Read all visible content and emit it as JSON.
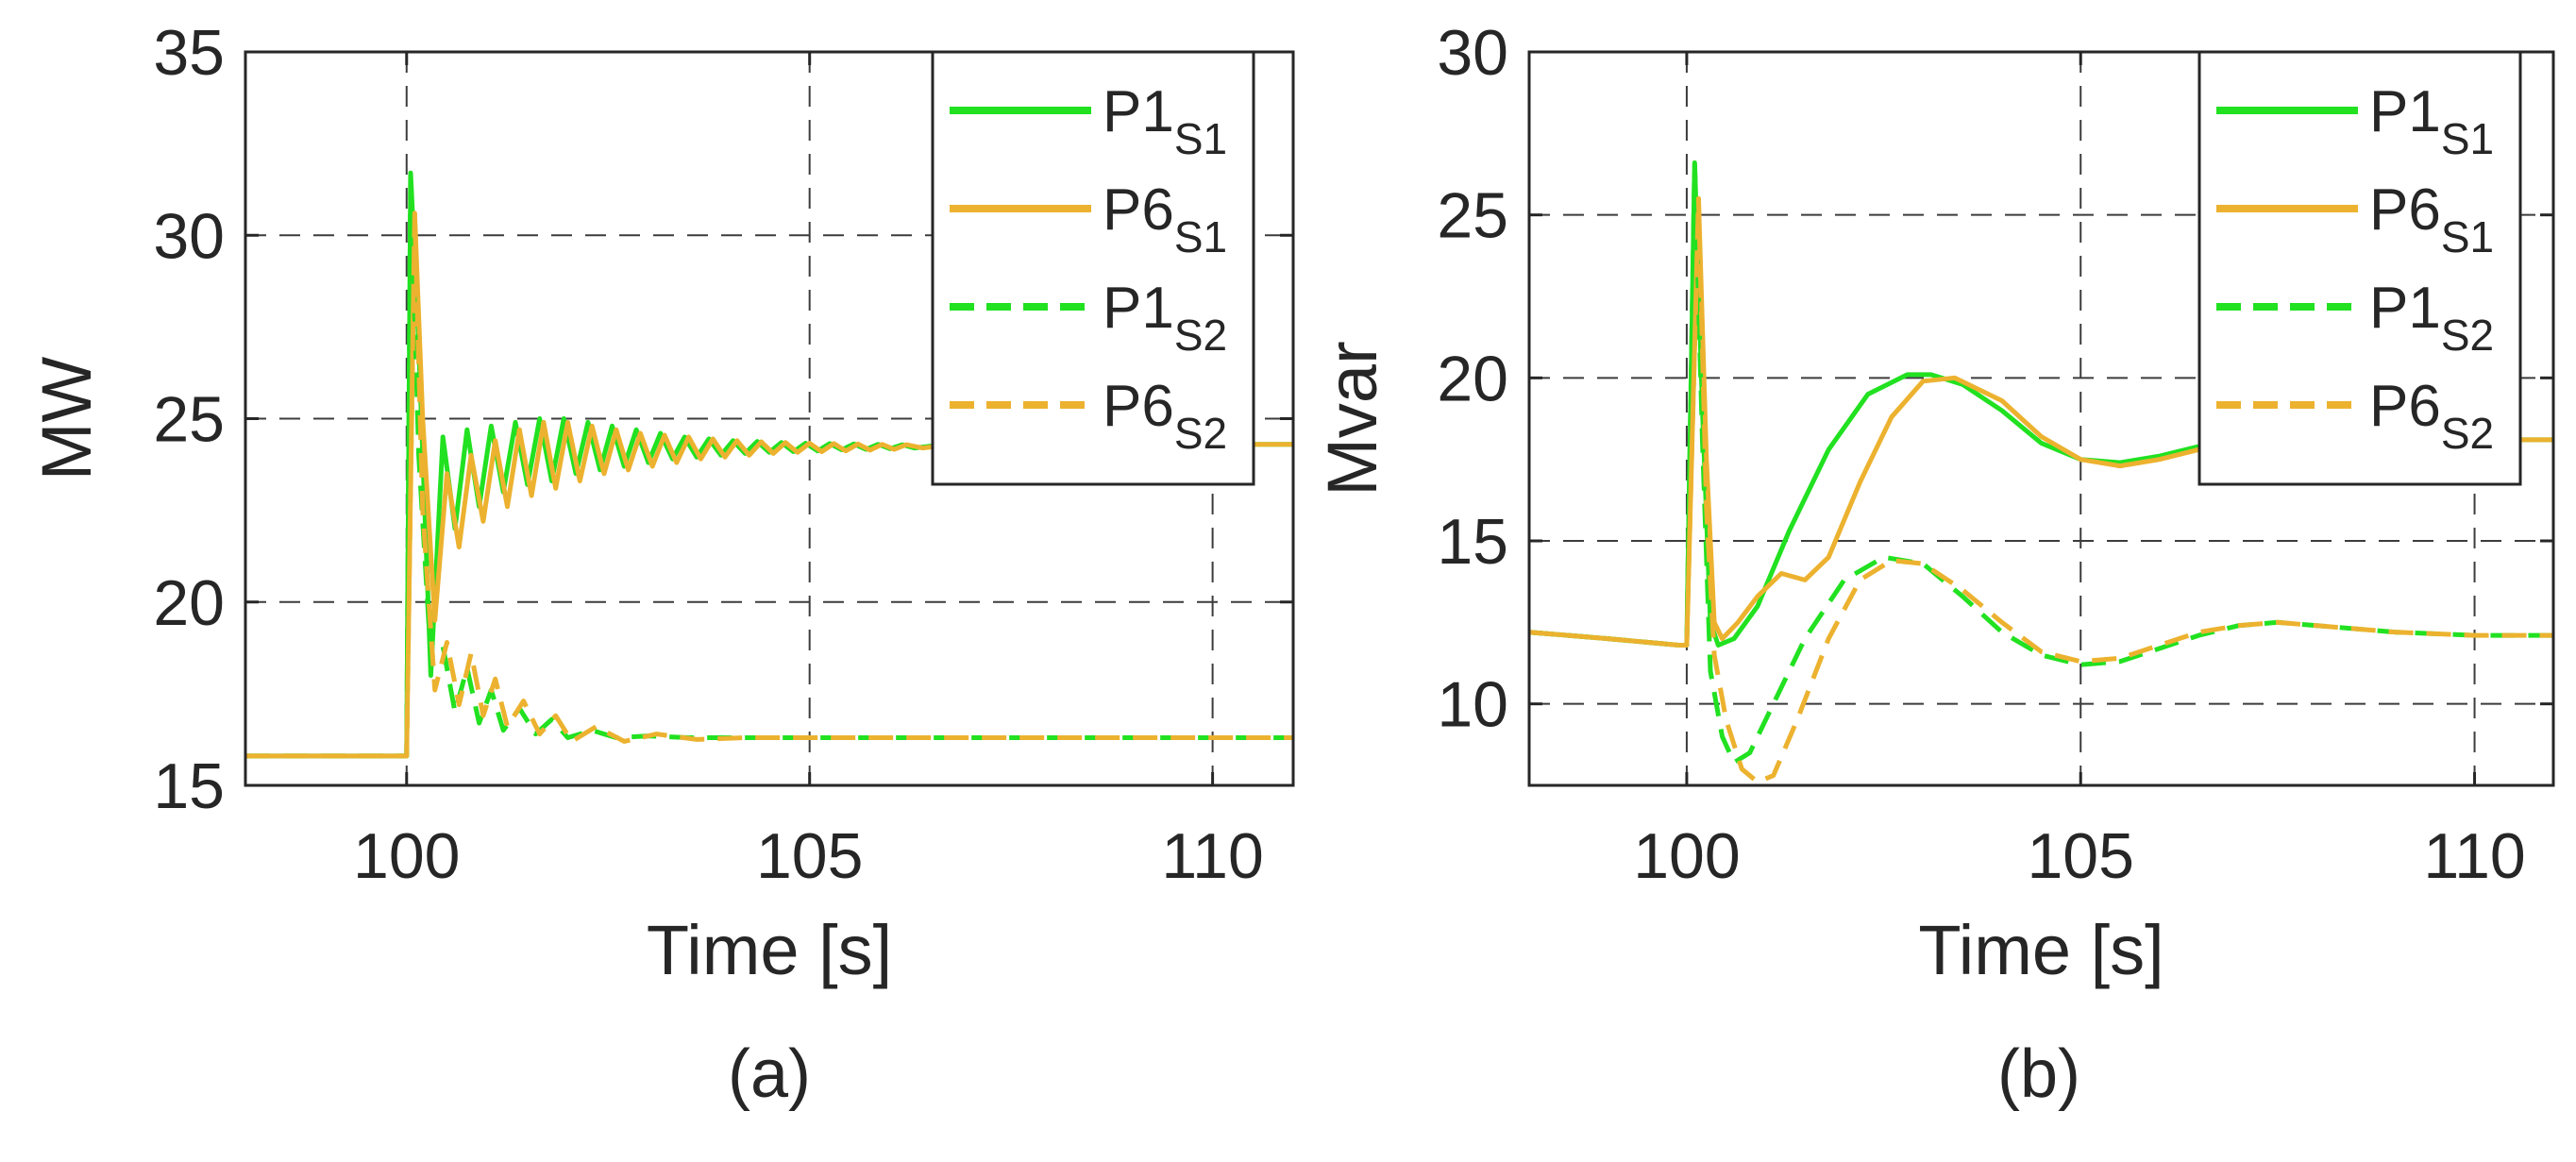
{
  "colors": {
    "green": "#21e121",
    "orange": "#ecb22f",
    "grid": "#3c3c3c",
    "text": "#262626"
  },
  "chart_data": [
    {
      "type": "line",
      "caption": "(a)",
      "xlabel": "Time [s]",
      "ylabel": "MW",
      "xlim": [
        98,
        111
      ],
      "ylim": [
        15,
        35
      ],
      "xticks": [
        100,
        105,
        110
      ],
      "yticks": [
        15,
        20,
        25,
        30,
        35
      ],
      "grid": true,
      "legend_position": "top-right",
      "series": [
        {
          "name": "P1",
          "sub": "S1",
          "color": "#21e121",
          "style": "solid",
          "x": [
            98,
            99,
            100,
            100.05,
            100.15,
            100.3,
            100.45,
            100.6,
            100.75,
            100.9,
            101.05,
            101.2,
            101.35,
            101.5,
            101.65,
            101.8,
            101.95,
            102.1,
            102.25,
            102.4,
            102.55,
            102.7,
            102.85,
            103,
            103.15,
            103.3,
            103.45,
            103.6,
            103.75,
            103.9,
            104.05,
            104.2,
            104.35,
            104.5,
            104.65,
            104.8,
            104.95,
            105.1,
            105.25,
            105.4,
            105.55,
            105.7,
            105.85,
            106,
            106.15,
            106.3,
            106.5,
            107,
            108,
            109,
            110,
            111
          ],
          "y": [
            15.8,
            15.8,
            15.8,
            31.7,
            27.0,
            18.0,
            24.5,
            22.0,
            24.7,
            22.6,
            24.8,
            23.0,
            24.9,
            23.2,
            25.0,
            23.3,
            25.0,
            23.5,
            24.9,
            23.6,
            24.8,
            23.7,
            24.7,
            23.8,
            24.6,
            23.9,
            24.5,
            23.95,
            24.45,
            24.0,
            24.4,
            24.05,
            24.38,
            24.08,
            24.35,
            24.1,
            24.33,
            24.12,
            24.32,
            24.15,
            24.31,
            24.16,
            24.3,
            24.18,
            24.29,
            24.2,
            24.25,
            24.3,
            24.3,
            24.3,
            24.3,
            24.3
          ]
        },
        {
          "name": "P6",
          "sub": "S1",
          "color": "#ecb22f",
          "style": "solid",
          "x": [
            98,
            99,
            100,
            100.1,
            100.2,
            100.35,
            100.5,
            100.65,
            100.8,
            100.95,
            101.1,
            101.25,
            101.4,
            101.55,
            101.7,
            101.85,
            102,
            102.15,
            102.3,
            102.45,
            102.6,
            102.75,
            102.9,
            103.05,
            103.2,
            103.35,
            103.5,
            103.65,
            103.8,
            103.95,
            104.1,
            104.25,
            104.4,
            104.55,
            104.7,
            104.85,
            105,
            105.15,
            105.3,
            105.45,
            105.6,
            105.75,
            105.9,
            106.05,
            106.2,
            106.4,
            106.6,
            107,
            108,
            109,
            110,
            111
          ],
          "y": [
            15.8,
            15.8,
            15.8,
            30.6,
            25.0,
            19.5,
            23.5,
            21.5,
            24.0,
            22.2,
            24.4,
            22.6,
            24.7,
            22.9,
            24.9,
            23.1,
            24.9,
            23.3,
            24.8,
            23.5,
            24.7,
            23.6,
            24.6,
            23.7,
            24.55,
            23.8,
            24.5,
            23.9,
            24.45,
            23.95,
            24.4,
            24.0,
            24.37,
            24.05,
            24.35,
            24.08,
            24.33,
            24.1,
            24.32,
            24.12,
            24.31,
            24.14,
            24.3,
            24.16,
            24.29,
            24.2,
            24.25,
            24.3,
            24.3,
            24.3,
            24.3,
            24.3
          ]
        },
        {
          "name": "P1",
          "sub": "S2",
          "color": "#21e121",
          "style": "dashed",
          "x": [
            98,
            99,
            100,
            100.05,
            100.15,
            100.3,
            100.45,
            100.6,
            100.75,
            100.9,
            101.05,
            101.2,
            101.4,
            101.6,
            101.8,
            102,
            102.3,
            102.6,
            103,
            103.5,
            104,
            105,
            106,
            107,
            108,
            109,
            110,
            111
          ],
          "y": [
            15.8,
            15.8,
            15.8,
            31.7,
            24.0,
            18.5,
            18.8,
            17.0,
            18.2,
            16.7,
            17.6,
            16.5,
            17.1,
            16.4,
            16.8,
            16.3,
            16.5,
            16.3,
            16.35,
            16.3,
            16.3,
            16.3,
            16.3,
            16.3,
            16.3,
            16.3,
            16.3,
            16.3
          ]
        },
        {
          "name": "P6",
          "sub": "S2",
          "color": "#ecb22f",
          "style": "dashed",
          "x": [
            98,
            99,
            100,
            100.1,
            100.2,
            100.35,
            100.5,
            100.65,
            100.8,
            100.95,
            101.1,
            101.25,
            101.45,
            101.65,
            101.85,
            102.05,
            102.35,
            102.7,
            103.1,
            103.6,
            104.2,
            105,
            106,
            107,
            108,
            109,
            110,
            111
          ],
          "y": [
            15.8,
            15.8,
            15.8,
            30.6,
            22.5,
            17.6,
            18.9,
            17.2,
            18.6,
            16.9,
            17.9,
            16.6,
            17.3,
            16.4,
            16.9,
            16.2,
            16.6,
            16.2,
            16.4,
            16.25,
            16.3,
            16.3,
            16.3,
            16.3,
            16.3,
            16.3,
            16.3,
            16.3
          ]
        }
      ]
    },
    {
      "type": "line",
      "caption": "(b)",
      "xlabel": "Time [s]",
      "ylabel": "Mvar",
      "xlim": [
        98,
        111
      ],
      "ylim": [
        7.5,
        30
      ],
      "xticks": [
        100,
        105,
        110
      ],
      "yticks": [
        10,
        15,
        20,
        25,
        30
      ],
      "grid": true,
      "legend_position": "top-right",
      "series": [
        {
          "name": "P1",
          "sub": "S1",
          "color": "#21e121",
          "style": "solid",
          "x": [
            98,
            99,
            99.9,
            100,
            100.1,
            100.2,
            100.3,
            100.4,
            100.6,
            100.9,
            101.3,
            101.8,
            102.3,
            102.8,
            103.1,
            103.5,
            104,
            104.5,
            105,
            105.5,
            106,
            106.5,
            107,
            107.5,
            108,
            109,
            110,
            111
          ],
          "y": [
            12.2,
            12.0,
            11.8,
            11.8,
            26.6,
            19.0,
            12.5,
            11.8,
            12.0,
            13.0,
            15.3,
            17.8,
            19.5,
            20.1,
            20.1,
            19.8,
            19.0,
            18.0,
            17.5,
            17.4,
            17.6,
            17.9,
            18.1,
            18.2,
            18.2,
            18.1,
            18.1,
            18.1
          ]
        },
        {
          "name": "P6",
          "sub": "S1",
          "color": "#ecb22f",
          "style": "solid",
          "x": [
            98,
            99,
            99.9,
            100,
            100.15,
            100.25,
            100.35,
            100.45,
            100.65,
            100.9,
            101.2,
            101.5,
            101.8,
            102.2,
            102.6,
            103,
            103.4,
            104,
            104.5,
            105,
            105.5,
            106,
            106.5,
            107,
            107.5,
            108,
            109,
            110,
            111
          ],
          "y": [
            12.2,
            12.0,
            11.8,
            11.8,
            25.5,
            17.5,
            12.5,
            12.0,
            12.5,
            13.3,
            14.0,
            13.8,
            14.5,
            16.8,
            18.8,
            19.9,
            20.0,
            19.3,
            18.2,
            17.5,
            17.3,
            17.5,
            17.8,
            18.0,
            18.2,
            18.2,
            18.1,
            18.1,
            18.1
          ]
        },
        {
          "name": "P1",
          "sub": "S2",
          "color": "#21e121",
          "style": "dashed",
          "x": [
            98,
            99,
            99.9,
            100,
            100.1,
            100.2,
            100.3,
            100.45,
            100.6,
            100.8,
            101.1,
            101.5,
            102,
            102.5,
            103,
            103.5,
            104,
            104.5,
            105,
            105.5,
            106,
            106.5,
            107,
            107.5,
            108,
            109,
            110,
            111
          ],
          "y": [
            12.2,
            12.0,
            11.8,
            11.8,
            26.6,
            18.0,
            11.0,
            9.0,
            8.2,
            8.5,
            10.0,
            12.0,
            13.8,
            14.5,
            14.3,
            13.3,
            12.2,
            11.5,
            11.2,
            11.3,
            11.7,
            12.1,
            12.4,
            12.5,
            12.4,
            12.2,
            12.1,
            12.1
          ]
        },
        {
          "name": "P6",
          "sub": "S2",
          "color": "#ecb22f",
          "style": "dashed",
          "x": [
            98,
            99,
            99.9,
            100,
            100.15,
            100.25,
            100.35,
            100.5,
            100.7,
            100.9,
            101.1,
            101.4,
            101.8,
            102.2,
            102.6,
            103,
            103.5,
            104,
            104.5,
            105,
            105.5,
            106,
            106.5,
            107,
            107.5,
            108,
            109,
            110,
            111
          ],
          "y": [
            12.2,
            12.0,
            11.8,
            11.8,
            25.5,
            16.0,
            11.5,
            9.5,
            8.0,
            7.6,
            7.8,
            9.5,
            12.0,
            13.8,
            14.4,
            14.3,
            13.5,
            12.5,
            11.6,
            11.3,
            11.4,
            11.8,
            12.2,
            12.4,
            12.5,
            12.4,
            12.2,
            12.1,
            12.1
          ]
        }
      ]
    }
  ]
}
